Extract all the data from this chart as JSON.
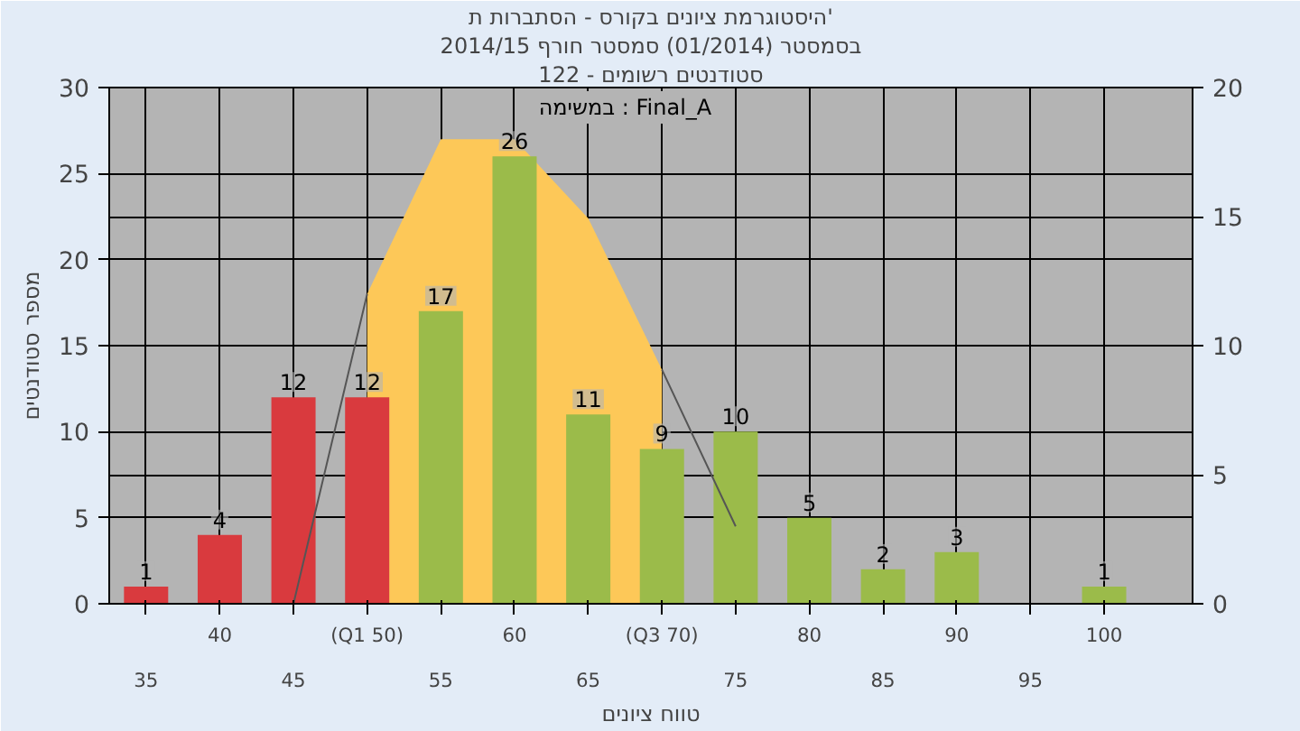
{
  "chart_data": {
    "type": "bar",
    "title": "היסטוגרמת ציונים בקורס - הסתברות ת'",
    "subtitle": [
      "בסמסטר (01/2014) סמסטר חורף 2014/15",
      "סטודנטים רשומים - 122"
    ],
    "xlabel": "טווח ציונים",
    "ylabel": "מספר סטודנטים",
    "annotations": [
      "במשימה : Final_A"
    ],
    "categories": [
      "35",
      "40",
      "45",
      "(Q1 50)",
      "55",
      "60",
      "65",
      "(Q3 70)",
      "75",
      "80",
      "85",
      "90",
      "95",
      "100"
    ],
    "series": [
      {
        "type": "area",
        "color": "#fdc858",
        "x": [
          "(Q1 50)",
          "55",
          "60",
          "65",
          "(Q3 70)"
        ],
        "values": [
          18,
          27,
          27,
          22.4,
          13.6
        ]
      },
      {
        "values": [
          1,
          4,
          12,
          12,
          17,
          26,
          11,
          9,
          10,
          5,
          2,
          3,
          0,
          1
        ],
        "colors": [
          "#d93a3e",
          "#d93a3e",
          "#d93a3e",
          "#d93a3e",
          "#9bbb4a",
          "#9bbb4a",
          "#9bbb4a",
          "#9bbb4a",
          "#9bbb4a",
          "#9bbb4a",
          "#9bbb4a",
          "#9bbb4a",
          "#9bbb4a",
          "#9bbb4a"
        ],
        "value_labels": [
          "1",
          "4",
          "12",
          "12",
          "17",
          "26",
          "11",
          "9",
          "10",
          "5",
          "2",
          "3",
          null,
          "1"
        ]
      },
      {
        "type": "line",
        "color": "#555555",
        "x": [
          "45",
          "(Q1 50)",
          "55",
          "60",
          "65",
          "(Q3 70)",
          "75"
        ],
        "values": [
          0,
          18,
          null,
          null,
          null,
          13.6,
          4.5
        ]
      }
    ],
    "ylim": [
      0,
      30
    ],
    "yticks": [
      0,
      5,
      10,
      15,
      20,
      25,
      30
    ],
    "y2lim": [
      0,
      20
    ],
    "y2ticks": [
      0,
      5,
      10,
      15,
      20
    ],
    "grid": true
  }
}
